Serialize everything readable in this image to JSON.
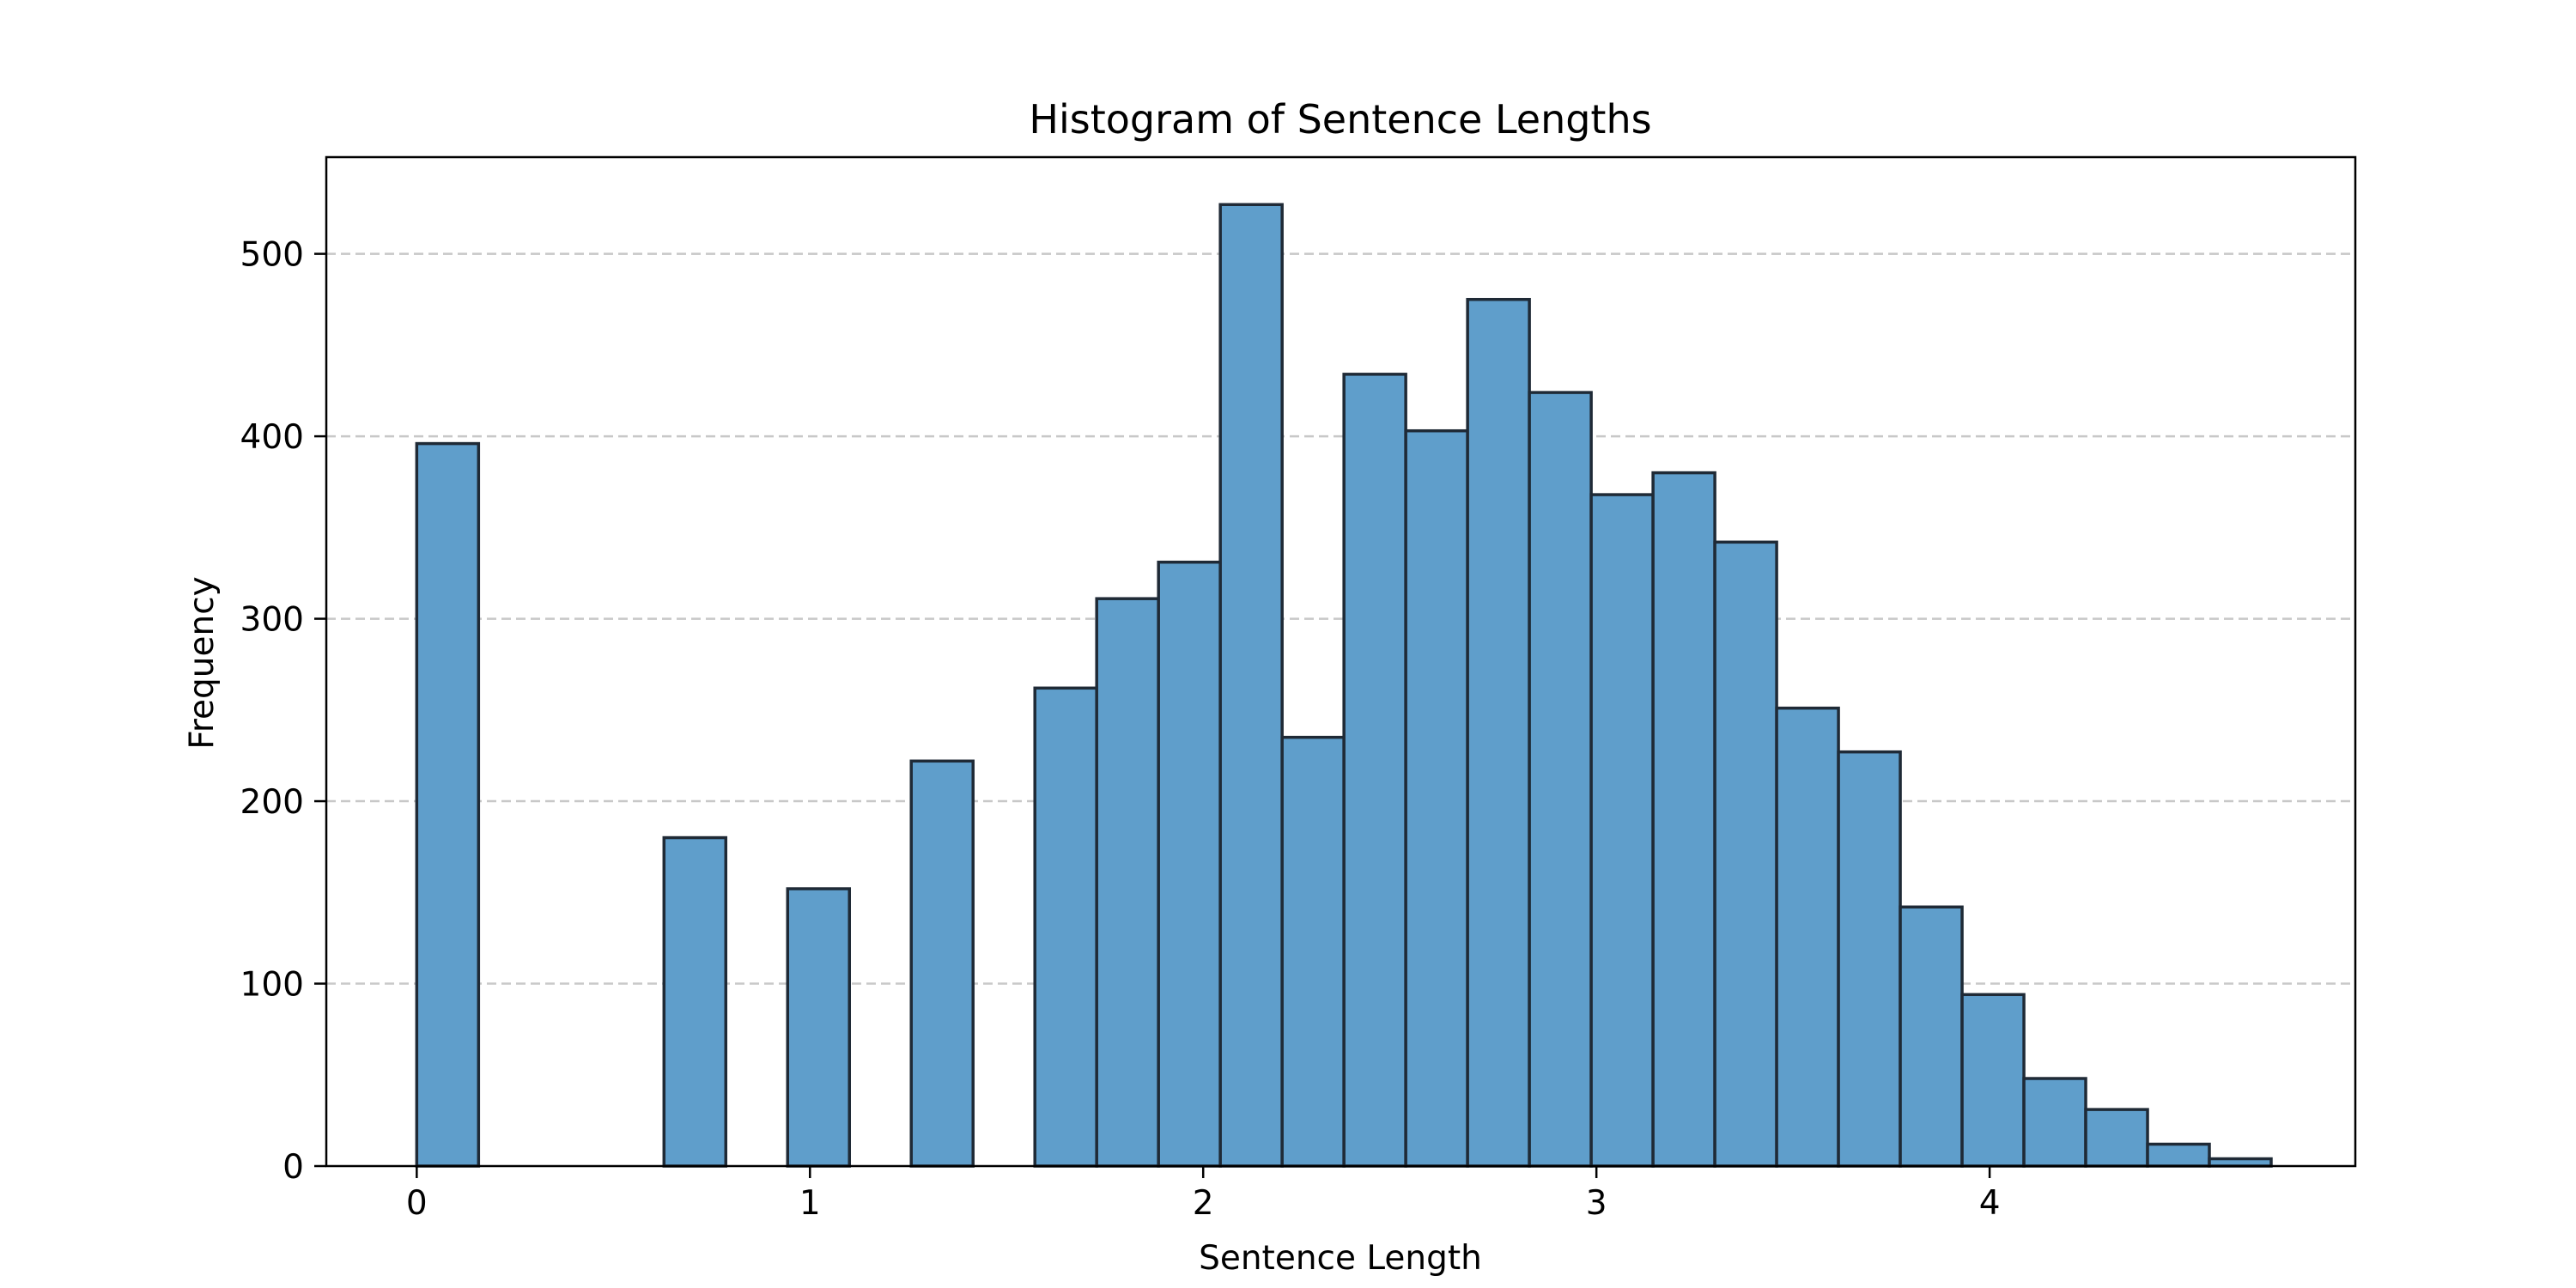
{
  "chart_data": {
    "type": "bar",
    "title": "Histogram of Sentence Lengths",
    "xlabel": "Sentence Length",
    "ylabel": "Frequency",
    "xlim": [
      -0.23,
      4.93
    ],
    "ylim": [
      0,
      553
    ],
    "xticks": [
      0,
      1,
      2,
      3,
      4
    ],
    "yticks": [
      0,
      100,
      200,
      300,
      400,
      500
    ],
    "grid": "y-dashed",
    "bar_color": "#5f9ecb",
    "edge_color": "#1f2a36",
    "bin_start": 0,
    "bin_width": 0.1572,
    "values": [
      396,
      0,
      0,
      0,
      180,
      0,
      152,
      0,
      222,
      0,
      262,
      311,
      331,
      527,
      235,
      434,
      403,
      475,
      424,
      368,
      380,
      342,
      251,
      227,
      142,
      94,
      48,
      31,
      12,
      4
    ]
  }
}
